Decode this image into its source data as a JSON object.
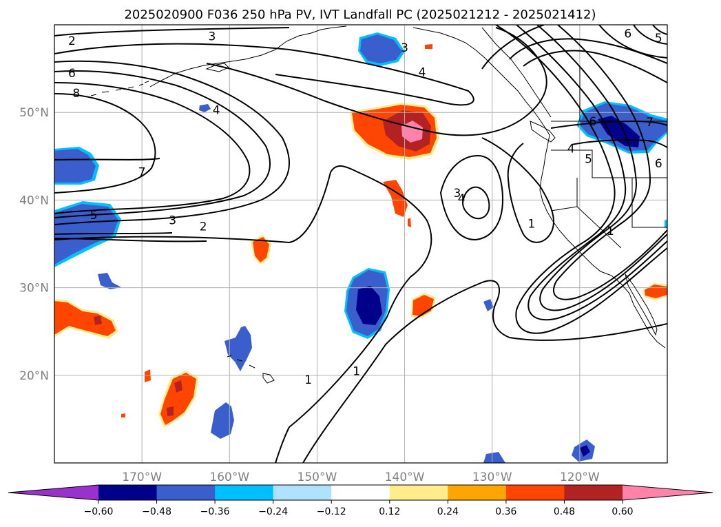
{
  "title": "2025020900 F036 250 hPa PV, IVT Landfall PC (2025021212 - 2025021412)",
  "map": {
    "lon_range": [
      -180,
      -110
    ],
    "lat_range": [
      10,
      60
    ],
    "lon_ticks": [
      {
        "value": -170,
        "label": "170°W"
      },
      {
        "value": -160,
        "label": "160°W"
      },
      {
        "value": -150,
        "label": "150°W"
      },
      {
        "value": -140,
        "label": "140°W"
      },
      {
        "value": -130,
        "label": "130°W"
      },
      {
        "value": -120,
        "label": "120°W"
      }
    ],
    "lat_ticks": [
      {
        "value": 20,
        "label": "20°N"
      },
      {
        "value": 30,
        "label": "30°N"
      },
      {
        "value": 40,
        "label": "40°N"
      },
      {
        "value": 50,
        "label": "50°N"
      }
    ],
    "grid": true
  },
  "colorbar": {
    "orientation": "horizontal",
    "extend": "both",
    "levels": [
      -0.72,
      -0.6,
      -0.48,
      -0.36,
      -0.24,
      -0.12,
      0.12,
      0.24,
      0.36,
      0.48,
      0.6,
      0.72
    ],
    "colors": [
      "#9932cc",
      "#00008b",
      "#3a5fcd",
      "#00bfff",
      "#b0e2ff",
      "#ffffff",
      "#ffec8b",
      "#ffa500",
      "#ff4500",
      "#b22222",
      "#ff82ab"
    ],
    "tick_labels": [
      "−0.60",
      "−0.48",
      "−0.36",
      "−0.24",
      "−0.12",
      "0.12",
      "0.24",
      "0.36",
      "0.48",
      "0.60"
    ]
  },
  "pv_contour_labels": [
    {
      "text": "2",
      "lon": -178,
      "lat": 58.2
    },
    {
      "text": "3",
      "lon": -162,
      "lat": 58.7
    },
    {
      "text": "6",
      "lon": -178,
      "lat": 54.5
    },
    {
      "text": "8",
      "lon": -177.5,
      "lat": 52.2
    },
    {
      "text": "4",
      "lon": -161.5,
      "lat": 50.3
    },
    {
      "text": "7",
      "lon": -170,
      "lat": 43.2
    },
    {
      "text": "5",
      "lon": -175.5,
      "lat": 38.3
    },
    {
      "text": "3",
      "lon": -166.5,
      "lat": 37.7
    },
    {
      "text": "2",
      "lon": -163,
      "lat": 37.0
    },
    {
      "text": "3",
      "lon": -140,
      "lat": 57.4
    },
    {
      "text": "4",
      "lon": -138,
      "lat": 54.6
    },
    {
      "text": "3",
      "lon": -134,
      "lat": 40.8
    },
    {
      "text": "4",
      "lon": -133.5,
      "lat": 40.2
    },
    {
      "text": "1",
      "lon": -125.5,
      "lat": 37.3
    },
    {
      "text": "6",
      "lon": -114.5,
      "lat": 59.0
    },
    {
      "text": "5",
      "lon": -111,
      "lat": 58.5
    },
    {
      "text": "6",
      "lon": -118.5,
      "lat": 49.0
    },
    {
      "text": "7",
      "lon": -112,
      "lat": 48.9
    },
    {
      "text": "4",
      "lon": -121,
      "lat": 45.9
    },
    {
      "text": "5",
      "lon": -119,
      "lat": 44.7
    },
    {
      "text": "6",
      "lon": -111,
      "lat": 44.2
    },
    {
      "text": "1",
      "lon": -116.5,
      "lat": 36.5
    },
    {
      "text": "1",
      "lon": -151,
      "lat": 19.5
    },
    {
      "text": "1",
      "lon": -145.5,
      "lat": 20.5
    }
  ]
}
